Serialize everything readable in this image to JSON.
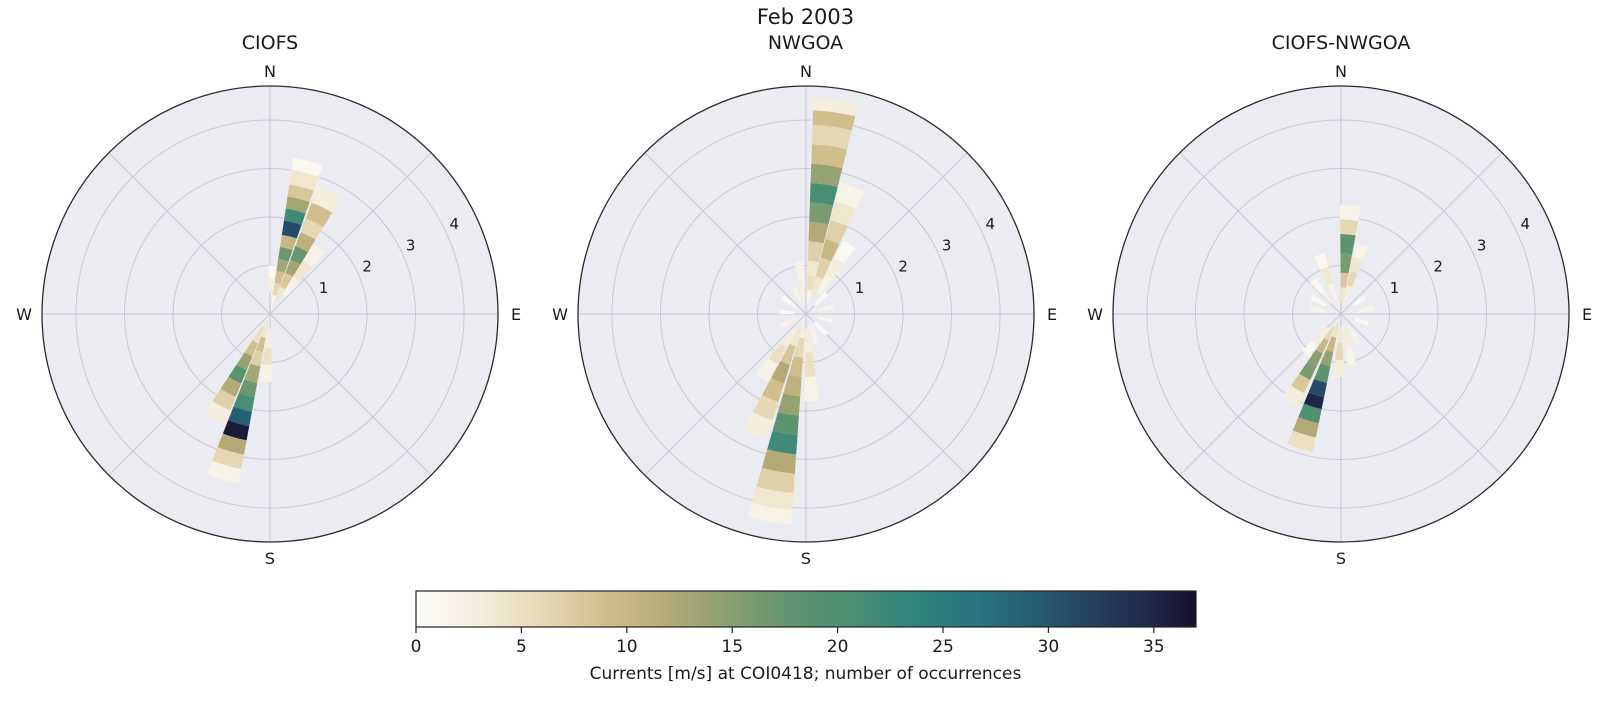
{
  "figure": {
    "title": "Feb 2003"
  },
  "colorbar": {
    "label": "Currents [m/s] at COI0418; number of occurrences",
    "ticks": [
      0,
      5,
      10,
      15,
      20,
      25,
      30,
      35
    ],
    "vmin": 0,
    "vmax": 37
  },
  "chart_data": {
    "type": "polar-stacked-bar",
    "description": "Three polar current-rose histograms; bar direction = current direction, radius = speed [m/s], segment color = number of occurrences",
    "rmax": 4.7,
    "radial_ticks": [
      1,
      2,
      3,
      4
    ],
    "compass_labels": [
      "N",
      "E",
      "S",
      "W"
    ],
    "style": {
      "panel_bg": "#ebebf2",
      "grid": "#c9c9d3",
      "outline": "#2b2b2b",
      "text": "#1a1a1a"
    },
    "colormap": [
      [
        0.0,
        "#fdfdfb"
      ],
      [
        0.08,
        "#f5eedd"
      ],
      [
        0.16,
        "#e8d9b6"
      ],
      [
        0.24,
        "#d3bf8d"
      ],
      [
        0.32,
        "#b5ab77"
      ],
      [
        0.4,
        "#8aa06f"
      ],
      [
        0.48,
        "#5f946f"
      ],
      [
        0.56,
        "#4b8f74"
      ],
      [
        0.64,
        "#2f847d"
      ],
      [
        0.72,
        "#28747f"
      ],
      [
        0.8,
        "#265a72"
      ],
      [
        0.88,
        "#243c5b"
      ],
      [
        0.95,
        "#1f2544"
      ],
      [
        1.0,
        "#160f2c"
      ]
    ],
    "subplots": [
      {
        "title": "CIOFS",
        "bars": [
          {
            "dir": 3,
            "width": 10,
            "segments": [
              [
                0.45,
                0.75,
                3
              ],
              [
                0.75,
                1.0,
                1
              ]
            ]
          },
          {
            "dir": 14,
            "width": 11,
            "segments": [
              [
                0.1,
                0.4,
                2
              ],
              [
                0.4,
                0.65,
                6
              ],
              [
                0.65,
                0.9,
                9
              ],
              [
                0.9,
                1.15,
                13
              ],
              [
                1.15,
                1.4,
                17
              ],
              [
                1.4,
                1.65,
                10
              ],
              [
                1.65,
                1.95,
                31
              ],
              [
                1.95,
                2.2,
                22
              ],
              [
                2.2,
                2.45,
                13
              ],
              [
                2.45,
                2.7,
                8
              ],
              [
                2.7,
                3.0,
                4
              ],
              [
                3.0,
                3.25,
                1
              ]
            ]
          },
          {
            "dir": 26,
            "width": 11,
            "segments": [
              [
                0.3,
                0.6,
                4
              ],
              [
                0.6,
                0.9,
                8
              ],
              [
                0.9,
                1.2,
                13
              ],
              [
                1.2,
                1.5,
                17
              ],
              [
                1.5,
                1.8,
                11
              ],
              [
                1.8,
                2.1,
                6
              ],
              [
                2.1,
                2.45,
                9
              ],
              [
                2.45,
                2.8,
                3
              ]
            ]
          },
          {
            "dir": 37,
            "width": 10,
            "segments": [
              [
                0.5,
                0.9,
                2
              ],
              [
                0.9,
                1.3,
                4
              ],
              [
                1.3,
                1.7,
                2
              ]
            ]
          },
          {
            "dir": 183,
            "width": 10,
            "segments": [
              [
                0.3,
                0.7,
                3
              ],
              [
                0.7,
                1.05,
                5
              ],
              [
                1.05,
                1.4,
                2
              ]
            ]
          },
          {
            "dir": 196,
            "width": 11,
            "segments": [
              [
                0.2,
                0.5,
                4
              ],
              [
                0.5,
                0.8,
                9
              ],
              [
                0.8,
                1.1,
                7
              ],
              [
                1.1,
                1.45,
                13
              ],
              [
                1.45,
                1.75,
                17
              ],
              [
                1.75,
                2.05,
                21
              ],
              [
                2.05,
                2.35,
                29
              ],
              [
                2.35,
                2.65,
                36
              ],
              [
                2.65,
                2.95,
                12
              ],
              [
                2.95,
                3.25,
                6
              ],
              [
                3.25,
                3.55,
                2
              ]
            ]
          },
          {
            "dir": 208,
            "width": 11,
            "segments": [
              [
                0.3,
                0.65,
                5
              ],
              [
                0.65,
                0.95,
                9
              ],
              [
                0.95,
                1.25,
                14
              ],
              [
                1.25,
                1.55,
                19
              ],
              [
                1.55,
                1.85,
                12
              ],
              [
                1.85,
                2.15,
                7
              ],
              [
                2.15,
                2.45,
                3
              ]
            ]
          }
        ]
      },
      {
        "title": "NWGOA",
        "bars": [
          {
            "dir": 8,
            "width": 12,
            "segments": [
              [
                0.2,
                0.5,
                2
              ],
              [
                0.5,
                0.8,
                5
              ],
              [
                0.8,
                1.1,
                4
              ],
              [
                1.1,
                1.5,
                7
              ],
              [
                1.5,
                1.9,
                12
              ],
              [
                1.9,
                2.3,
                16
              ],
              [
                2.3,
                2.7,
                21
              ],
              [
                2.7,
                3.1,
                14
              ],
              [
                3.1,
                3.5,
                9
              ],
              [
                3.5,
                3.9,
                6
              ],
              [
                3.9,
                4.2,
                9
              ],
              [
                4.2,
                4.45,
                3
              ]
            ]
          },
          {
            "dir": 20,
            "width": 11,
            "segments": [
              [
                0.4,
                0.8,
                4
              ],
              [
                0.8,
                1.2,
                7
              ],
              [
                1.2,
                1.6,
                10
              ],
              [
                1.6,
                2.0,
                7
              ],
              [
                2.0,
                2.4,
                4
              ],
              [
                2.4,
                2.8,
                2
              ]
            ]
          },
          {
            "dir": 32,
            "width": 10,
            "segments": [
              [
                0.5,
                0.9,
                2
              ],
              [
                0.9,
                1.3,
                3
              ],
              [
                1.3,
                1.7,
                1
              ]
            ]
          },
          {
            "dir": 352,
            "width": 10,
            "segments": [
              [
                0.3,
                0.7,
                3
              ],
              [
                0.7,
                1.1,
                2
              ]
            ]
          },
          {
            "dir": 45,
            "width": 10,
            "segments": [
              [
                0.25,
                0.6,
                1
              ]
            ]
          },
          {
            "dir": 75,
            "width": 10,
            "segments": [
              [
                0.25,
                0.6,
                2
              ]
            ]
          },
          {
            "dir": 105,
            "width": 10,
            "segments": [
              [
                0.25,
                0.55,
                1
              ]
            ]
          },
          {
            "dir": 135,
            "width": 10,
            "segments": [
              [
                0.25,
                0.6,
                1
              ]
            ]
          },
          {
            "dir": 160,
            "width": 10,
            "segments": [
              [
                0.25,
                0.65,
                2
              ]
            ]
          },
          {
            "dir": 245,
            "width": 10,
            "segments": [
              [
                0.25,
                0.6,
                2
              ]
            ]
          },
          {
            "dir": 275,
            "width": 10,
            "segments": [
              [
                0.25,
                0.55,
                1
              ]
            ]
          },
          {
            "dir": 305,
            "width": 10,
            "segments": [
              [
                0.25,
                0.6,
                1
              ]
            ]
          },
          {
            "dir": 335,
            "width": 10,
            "segments": [
              [
                0.25,
                0.6,
                2
              ]
            ]
          },
          {
            "dir": 176,
            "width": 10,
            "segments": [
              [
                0.3,
                0.8,
                3
              ],
              [
                0.8,
                1.3,
                5
              ],
              [
                1.3,
                1.8,
                2
              ]
            ]
          },
          {
            "dir": 190,
            "width": 12,
            "segments": [
              [
                0.2,
                0.5,
                3
              ],
              [
                0.5,
                0.9,
                6
              ],
              [
                0.9,
                1.3,
                9
              ],
              [
                1.3,
                1.7,
                11
              ],
              [
                1.7,
                2.1,
                14
              ],
              [
                2.1,
                2.5,
                18
              ],
              [
                2.5,
                2.9,
                22
              ],
              [
                2.9,
                3.3,
                12
              ],
              [
                3.3,
                3.7,
                7
              ],
              [
                3.7,
                4.05,
                4
              ],
              [
                4.05,
                4.35,
                2
              ]
            ]
          },
          {
            "dir": 203,
            "width": 11,
            "segments": [
              [
                0.3,
                0.7,
                4
              ],
              [
                0.7,
                1.1,
                8
              ],
              [
                1.1,
                1.5,
                12
              ],
              [
                1.5,
                1.9,
                9
              ],
              [
                1.9,
                2.3,
                6
              ],
              [
                2.3,
                2.7,
                3
              ]
            ]
          },
          {
            "dir": 215,
            "width": 10,
            "segments": [
              [
                0.4,
                0.8,
                3
              ],
              [
                0.8,
                1.2,
                5
              ],
              [
                1.2,
                1.6,
                2
              ]
            ]
          }
        ]
      },
      {
        "title": "CIOFS-NWGOA",
        "bars": [
          {
            "dir": 5,
            "width": 11,
            "segments": [
              [
                0.25,
                0.55,
                4
              ],
              [
                0.55,
                0.85,
                8
              ],
              [
                0.85,
                1.25,
                16
              ],
              [
                1.25,
                1.65,
                18
              ],
              [
                1.65,
                1.95,
                6
              ],
              [
                1.95,
                2.25,
                2
              ]
            ]
          },
          {
            "dir": 17,
            "width": 10,
            "segments": [
              [
                0.3,
                0.6,
                3
              ],
              [
                0.6,
                0.9,
                6
              ],
              [
                0.9,
                1.2,
                4
              ],
              [
                1.2,
                1.5,
                2
              ]
            ]
          },
          {
            "dir": 340,
            "width": 10,
            "segments": [
              [
                0.3,
                0.65,
                2
              ],
              [
                0.65,
                1.0,
                4
              ],
              [
                1.0,
                1.3,
                1
              ]
            ]
          },
          {
            "dir": 320,
            "width": 10,
            "segments": [
              [
                0.3,
                0.6,
                2
              ],
              [
                0.6,
                0.9,
                1
              ]
            ]
          },
          {
            "dir": 300,
            "width": 10,
            "segments": [
              [
                0.35,
                0.7,
                1
              ]
            ]
          },
          {
            "dir": 280,
            "width": 10,
            "segments": [
              [
                0.3,
                0.65,
                2
              ]
            ]
          },
          {
            "dir": 55,
            "width": 10,
            "segments": [
              [
                0.3,
                0.6,
                1
              ]
            ]
          },
          {
            "dir": 80,
            "width": 10,
            "segments": [
              [
                0.35,
                0.7,
                2
              ]
            ]
          },
          {
            "dir": 110,
            "width": 10,
            "segments": [
              [
                0.3,
                0.6,
                1
              ]
            ]
          },
          {
            "dir": 150,
            "width": 10,
            "segments": [
              [
                0.3,
                0.7,
                2
              ]
            ]
          },
          {
            "dir": 168,
            "width": 10,
            "segments": [
              [
                0.3,
                0.7,
                3
              ],
              [
                0.7,
                1.1,
                2
              ]
            ]
          },
          {
            "dir": 182,
            "width": 10,
            "segments": [
              [
                0.25,
                0.6,
                4
              ],
              [
                0.6,
                0.95,
                6
              ],
              [
                0.95,
                1.3,
                3
              ]
            ]
          },
          {
            "dir": 197,
            "width": 11,
            "segments": [
              [
                0.2,
                0.5,
                5
              ],
              [
                0.5,
                0.8,
                10
              ],
              [
                0.8,
                1.1,
                14
              ],
              [
                1.1,
                1.45,
                18
              ],
              [
                1.45,
                1.75,
                31
              ],
              [
                1.75,
                2.0,
                35
              ],
              [
                2.0,
                2.3,
                20
              ],
              [
                2.3,
                2.6,
                12
              ],
              [
                2.6,
                2.9,
                5
              ]
            ]
          },
          {
            "dir": 210,
            "width": 10,
            "segments": [
              [
                0.3,
                0.6,
                6
              ],
              [
                0.6,
                0.9,
                10
              ],
              [
                0.9,
                1.2,
                15
              ],
              [
                1.2,
                1.5,
                16
              ],
              [
                1.5,
                1.8,
                8
              ],
              [
                1.8,
                2.1,
                3
              ]
            ]
          },
          {
            "dir": 222,
            "width": 10,
            "segments": [
              [
                0.4,
                0.8,
                3
              ],
              [
                0.8,
                1.1,
                1
              ]
            ]
          }
        ]
      }
    ]
  }
}
